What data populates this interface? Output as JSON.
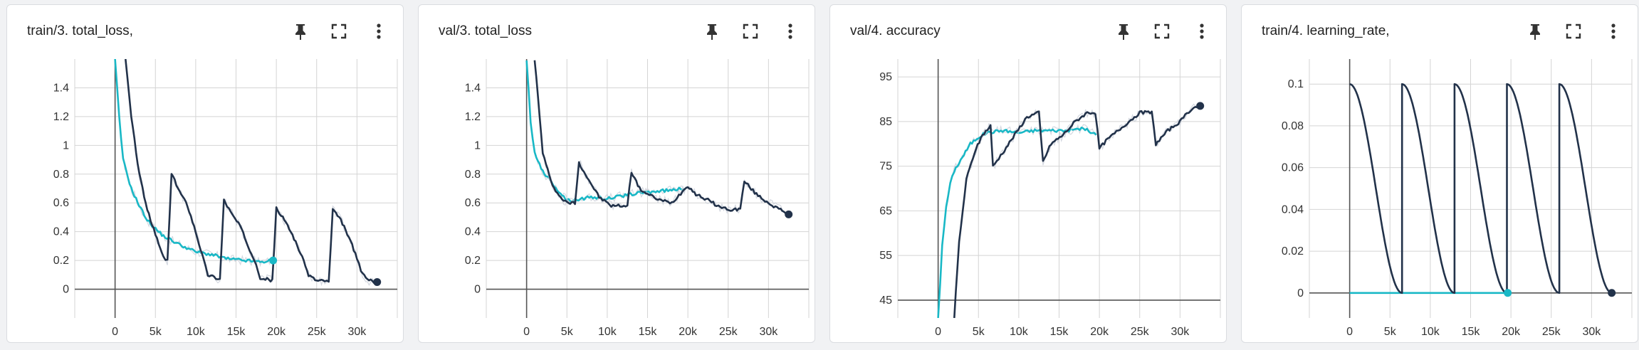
{
  "colors": {
    "run_a": "#22324a",
    "run_b": "#19b8c6",
    "raw": "#c9ced8",
    "grid": "#d4d4d4",
    "axis": "#555555"
  },
  "icons": [
    "pin-icon",
    "fullscreen-icon",
    "more-vert-icon"
  ],
  "chart_data": [
    {
      "type": "line",
      "title": "train/3. total_loss,",
      "xlim": [
        -5000,
        35000
      ],
      "ylim": [
        -0.2,
        1.6
      ],
      "xticks": [
        0,
        5000,
        10000,
        15000,
        20000,
        25000,
        30000
      ],
      "xtick_labels": [
        "0",
        "5k",
        "10k",
        "15k",
        "20k",
        "25k",
        "30k"
      ],
      "yticks": [
        0,
        0.2,
        0.4,
        0.6,
        0.8,
        1,
        1.2,
        1.4
      ],
      "ytick_labels": [
        "0",
        "0.2",
        "0.4",
        "0.6",
        "0.8",
        "1",
        "1.2",
        "1.4"
      ],
      "series": [
        {
          "color": "#19b8c6",
          "end_marker": true,
          "x": [
            0,
            500,
            1000,
            2000,
            3000,
            4000,
            5000,
            6000,
            8000,
            10000,
            12000,
            14000,
            16000,
            18000,
            19600
          ],
          "y": [
            1.6,
            1.2,
            0.9,
            0.7,
            0.58,
            0.48,
            0.42,
            0.37,
            0.31,
            0.26,
            0.24,
            0.21,
            0.2,
            0.19,
            0.2
          ]
        },
        {
          "color": "#22324a",
          "end_marker": true,
          "x": [
            1300,
            2000,
            3000,
            4000,
            5000,
            6000,
            6500,
            7000,
            8000,
            9000,
            10000,
            11000,
            11500,
            12500,
            13000,
            13500,
            14500,
            15500,
            16500,
            17500,
            18000,
            19500,
            20000,
            21000,
            22000,
            23000,
            24000,
            25000,
            26000,
            26500,
            27000,
            28000,
            29000,
            30000,
            30500,
            31500,
            32500
          ],
          "y": [
            1.6,
            1.2,
            0.8,
            0.55,
            0.38,
            0.22,
            0.2,
            0.8,
            0.68,
            0.58,
            0.4,
            0.2,
            0.1,
            0.08,
            0.07,
            0.62,
            0.52,
            0.44,
            0.3,
            0.18,
            0.08,
            0.06,
            0.56,
            0.48,
            0.38,
            0.25,
            0.1,
            0.06,
            0.06,
            0.05,
            0.55,
            0.48,
            0.36,
            0.22,
            0.12,
            0.06,
            0.05
          ]
        }
      ]
    },
    {
      "type": "line",
      "title": "val/3. total_loss",
      "xlim": [
        -5000,
        35000
      ],
      "ylim": [
        -0.2,
        1.6
      ],
      "xticks": [
        0,
        5000,
        10000,
        15000,
        20000,
        25000,
        30000
      ],
      "xtick_labels": [
        "0",
        "5k",
        "10k",
        "15k",
        "20k",
        "25k",
        "30k"
      ],
      "yticks": [
        0,
        0.2,
        0.4,
        0.6,
        0.8,
        1,
        1.2,
        1.4
      ],
      "ytick_labels": [
        "0",
        "0.2",
        "0.4",
        "0.6",
        "0.8",
        "1",
        "1.2",
        "1.4"
      ],
      "series": [
        {
          "color": "#19b8c6",
          "end_marker": false,
          "x": [
            0,
            500,
            1000,
            2000,
            3000,
            4000,
            5000,
            6000,
            8000,
            10000,
            12000,
            14000,
            16000,
            18000,
            19600
          ],
          "y": [
            1.6,
            1.15,
            0.95,
            0.82,
            0.75,
            0.68,
            0.62,
            0.62,
            0.64,
            0.63,
            0.65,
            0.67,
            0.68,
            0.69,
            0.7
          ]
        },
        {
          "color": "#22324a",
          "end_marker": true,
          "x": [
            1000,
            2000,
            3000,
            4000,
            5000,
            6000,
            6500,
            7500,
            9000,
            10500,
            12500,
            13000,
            14000,
            15000,
            16500,
            18000,
            20000,
            21000,
            22500,
            24000,
            25500,
            26500,
            27000,
            28500,
            30000,
            31500,
            32500
          ],
          "y": [
            1.6,
            0.95,
            0.75,
            0.65,
            0.6,
            0.6,
            0.88,
            0.78,
            0.64,
            0.58,
            0.58,
            0.82,
            0.7,
            0.66,
            0.62,
            0.6,
            0.72,
            0.66,
            0.62,
            0.57,
            0.55,
            0.56,
            0.75,
            0.66,
            0.6,
            0.55,
            0.52
          ]
        }
      ]
    },
    {
      "type": "line",
      "title": "val/4. accuracy",
      "xlim": [
        -5000,
        35000
      ],
      "ylim": [
        41,
        99
      ],
      "xticks": [
        0,
        5000,
        10000,
        15000,
        20000,
        25000,
        30000
      ],
      "xtick_labels": [
        "0",
        "5k",
        "10k",
        "15k",
        "20k",
        "25k",
        "30k"
      ],
      "yticks": [
        45,
        55,
        65,
        75,
        85,
        95
      ],
      "ytick_labels": [
        "45",
        "55",
        "65",
        "75",
        "85",
        "95"
      ],
      "series": [
        {
          "color": "#19b8c6",
          "end_marker": false,
          "x": [
            0,
            500,
            1000,
            1500,
            2000,
            3000,
            4000,
            5000,
            6000,
            8000,
            10000,
            12000,
            14000,
            16000,
            18000,
            19600
          ],
          "y": [
            41,
            57,
            66,
            71,
            74,
            77,
            80,
            81.5,
            82.5,
            83,
            82.5,
            83,
            83,
            83,
            83.5,
            82
          ]
        },
        {
          "color": "#22324a",
          "end_marker": true,
          "x": [
            2000,
            2600,
            3500,
            4500,
            5500,
            6500,
            6800,
            8000,
            9500,
            11000,
            12500,
            13000,
            14000,
            15500,
            17000,
            18500,
            19500,
            20000,
            21000,
            23000,
            25000,
            26500,
            27000,
            28500,
            30000,
            31500,
            32500
          ],
          "y": [
            41,
            58,
            72,
            78,
            82,
            84,
            75,
            78,
            82,
            86,
            87,
            76,
            80,
            82,
            85,
            87,
            87,
            79,
            81,
            84,
            87,
            87,
            80,
            83,
            85,
            88,
            88.5
          ]
        }
      ]
    },
    {
      "type": "line",
      "title": "train/4. learning_rate,",
      "xlim": [
        -5000,
        35000
      ],
      "ylim": [
        -0.012,
        0.112
      ],
      "xticks": [
        0,
        5000,
        10000,
        15000,
        20000,
        25000,
        30000
      ],
      "xtick_labels": [
        "0",
        "5k",
        "10k",
        "15k",
        "20k",
        "25k",
        "30k"
      ],
      "yticks": [
        0,
        0.02,
        0.04,
        0.06,
        0.08,
        0.1
      ],
      "ytick_labels": [
        "0",
        "0.02",
        "0.04",
        "0.06",
        "0.08",
        "0.1"
      ],
      "series": [
        {
          "color": "#19b8c6",
          "end_marker": true,
          "x": [
            0,
            19600
          ],
          "y": [
            0,
            0
          ]
        },
        {
          "color": "#22324a",
          "end_marker": true,
          "cosine_cycles": [
            [
              0,
              6500
            ],
            [
              6500,
              13000
            ],
            [
              13000,
              19500
            ],
            [
              19500,
              26000
            ],
            [
              26000,
              32500
            ]
          ],
          "cosine_max": 0.1
        }
      ]
    }
  ]
}
